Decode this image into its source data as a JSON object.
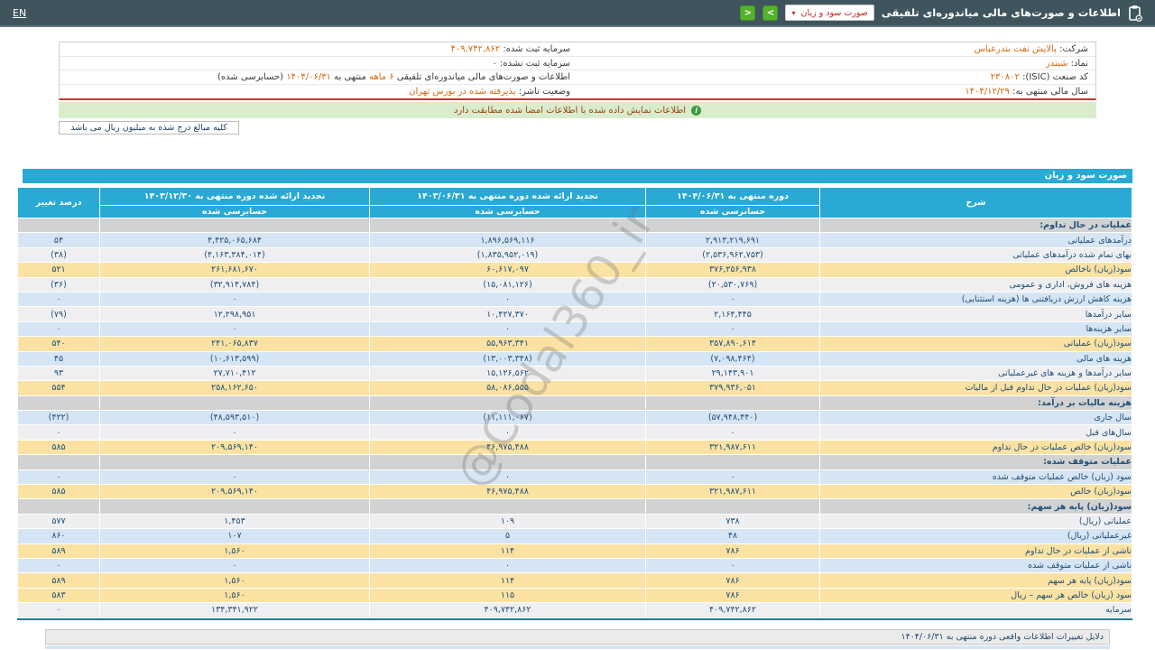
{
  "topbar": {
    "lang_link": "EN",
    "title": "اطلاعات و صورت‌های مالی میاندوره‌ای تلفیقی",
    "report_select": "صورت سود و زیان",
    "select_caret": "▾",
    "next_chevron": ">",
    "prev_chevron": "<"
  },
  "info": {
    "company_label": "شرکت:",
    "company_value": "پالایش نفت بندرعباس",
    "registered_capital_label": "سرمایه ثبت شده:",
    "registered_capital_value": "۴۰۹,۷۴۲,۸۶۲",
    "symbol_label": "نماد:",
    "symbol_value": "شبندر",
    "unregistered_capital_label": "سرمایه ثبت نشده:",
    "unregistered_capital_value": "۰",
    "isic_label": "کد صنعت (ISIC):",
    "isic_value": "۲۳۰۸۰۲",
    "period_note": {
      "prefix": "اطلاعات و صورت‌های مالی میاندوره‌ای تلفیقی",
      "months": "۶ ماهه",
      "middle": "منتهی به",
      "date": "۱۴۰۴/۰۶/۳۱",
      "suffix": "(حسابرسی شده)"
    },
    "fiscal_year_label": "سال مالی منتهی به:",
    "fiscal_year_value": "۱۴۰۴/۱۲/۲۹",
    "issuer_status_label": "وضعیت ناشر:",
    "issuer_status_value": "پذیرفته شده در بورس تهران"
  },
  "banner": {
    "text": "اطلاعات نمایش داده شده با اطلاعات امضا شده مطابقت دارد",
    "icon": "i"
  },
  "unit_note": "کلیه مبالغ درج شده به میلیون ریال می باشد",
  "table": {
    "title": "صورت سود و زیان",
    "columns": {
      "desc": "شرح",
      "col1": "دوره منتهی به ۱۴۰۴/۰۶/۳۱",
      "col2": "تجدید ارائه شده دوره منتهی به ۱۴۰۳/۰۶/۳۱",
      "col3": "تجدید ارائه شده دوره منتهی به ۱۴۰۳/۱۲/۳۰",
      "audited": "حسابرسی شده",
      "pct": "درصد تغییر"
    },
    "rows": [
      {
        "label": "عملیات در حال تداوم:",
        "style": "section",
        "v1": "",
        "v2": "",
        "v3": "",
        "pct": ""
      },
      {
        "label": "درآمدهای عملیاتی",
        "style": "blue",
        "v1": "۲,۹۱۳,۲۱۹,۶۹۱",
        "v2": "۱,۸۹۶,۵۶۹,۱۱۶",
        "v3": "۴,۴۲۵,۰۶۵,۶۸۴",
        "pct": "۵۴"
      },
      {
        "label": "بهای تمام شده درآمدهای عملیاتی",
        "style": "gray",
        "v1": "(۲,۵۳۶,۹۶۲,۷۵۳)",
        "v2": "(۱,۸۳۵,۹۵۲,۰۱۹)",
        "v3": "(۴,۱۶۳,۳۸۴,۰۱۴)",
        "pct": "(۳۸)"
      },
      {
        "label": "سود(زیان) ناخالص",
        "style": "yellow",
        "v1": "۳۷۶,۲۵۶,۹۳۸",
        "v2": "۶۰,۶۱۷,۰۹۷",
        "v3": "۲۶۱,۶۸۱,۶۷۰",
        "pct": "۵۲۱"
      },
      {
        "label": "هزینه های فروش، اداری و عمومی",
        "style": "gray",
        "v1": "(۲۰,۵۳۰,۷۶۹)",
        "v2": "(۱۵,۰۸۱,۱۲۶)",
        "v3": "(۳۲,۹۱۴,۷۸۴)",
        "pct": "(۳۶)"
      },
      {
        "label": "هزینه کاهش ارزش دریافتنی ها (هزینه استثنایی)",
        "style": "blue",
        "v1": "۰",
        "v2": "۰",
        "v3": "۰",
        "pct": "۰"
      },
      {
        "label": "سایر درآمدها",
        "style": "gray",
        "v1": "۲,۱۶۴,۴۴۵",
        "v2": "۱۰,۴۲۷,۳۷۰",
        "v3": "۱۲,۲۹۸,۹۵۱",
        "pct": "(۷۹)"
      },
      {
        "label": "سایر هزینه‌ها",
        "style": "blue",
        "v1": "۰",
        "v2": "۰",
        "v3": "۰",
        "pct": "۰"
      },
      {
        "label": "سود(زیان) عملیاتی",
        "style": "yellow",
        "v1": "۳۵۷,۸۹۰,۶۱۴",
        "v2": "۵۵,۹۶۳,۳۴۱",
        "v3": "۲۴۱,۰۶۵,۸۳۷",
        "pct": "۵۴۰"
      },
      {
        "label": "هزینه های مالی",
        "style": "blue",
        "v1": "(۷,۰۹۸,۴۶۴)",
        "v2": "(۱۳,۰۰۳,۳۴۸)",
        "v3": "(۱۰,۶۱۳,۵۹۹)",
        "pct": "۴۵"
      },
      {
        "label": "سایر درآمدها و هزینه های غیرعملیاتی",
        "style": "gray",
        "v1": "۲۹,۱۴۳,۹۰۱",
        "v2": "۱۵,۱۲۶,۵۶۲",
        "v3": "۲۷,۷۱۰,۴۱۲",
        "pct": "۹۳"
      },
      {
        "label": "سود(زیان) عملیات در حال تداوم قبل از مالیات",
        "style": "yellow",
        "v1": "۳۷۹,۹۳۶,۰۵۱",
        "v2": "۵۸,۰۸۶,۵۵۵",
        "v3": "۲۵۸,۱۶۲,۶۵۰",
        "pct": "۵۵۴"
      },
      {
        "label": "هزینه مالیات بر درآمد:",
        "style": "section",
        "v1": "",
        "v2": "",
        "v3": "",
        "pct": ""
      },
      {
        "label": "سال جاری",
        "style": "blue",
        "v1": "(۵۷,۹۴۸,۴۴۰)",
        "v2": "(۱۱,۱۱۱,۰۶۷)",
        "v3": "(۴۸,۵۹۳,۵۱۰)",
        "pct": "(۴۲۲)"
      },
      {
        "label": "سال‌های قبل",
        "style": "gray",
        "v1": "۰",
        "v2": "۰",
        "v3": "۰",
        "pct": "۰"
      },
      {
        "label": "سود(زیان) خالص عملیات در حال تداوم",
        "style": "yellow",
        "v1": "۳۲۱,۹۸۷,۶۱۱",
        "v2": "۴۶,۹۷۵,۴۸۸",
        "v3": "۲۰۹,۵۶۹,۱۴۰",
        "pct": "۵۸۵"
      },
      {
        "label": "عملیات متوقف شده:",
        "style": "section",
        "v1": "",
        "v2": "",
        "v3": "",
        "pct": ""
      },
      {
        "label": "سود (زیان) خالص عملیات متوقف شده",
        "style": "blue",
        "v1": "۰",
        "v2": "۰",
        "v3": "۰",
        "pct": "۰"
      },
      {
        "label": "سود(زیان) خالص",
        "style": "yellow",
        "v1": "۳۲۱,۹۸۷,۶۱۱",
        "v2": "۴۶,۹۷۵,۴۸۸",
        "v3": "۲۰۹,۵۶۹,۱۴۰",
        "pct": "۵۸۵"
      },
      {
        "label": "سود(زیان) پایه هر سهم:",
        "style": "section",
        "v1": "",
        "v2": "",
        "v3": "",
        "pct": ""
      },
      {
        "label": "عملیاتی (ریال)",
        "style": "gray",
        "v1": "۷۳۸",
        "v2": "۱۰۹",
        "v3": "۱,۴۵۳",
        "pct": "۵۷۷"
      },
      {
        "label": "غیرعملیاتی (ریال)",
        "style": "blue",
        "v1": "۴۸",
        "v2": "۵",
        "v3": "۱۰۷",
        "pct": "۸۶۰"
      },
      {
        "label": "ناشی از عملیات در حال تداوم",
        "style": "yellow",
        "v1": "۷۸۶",
        "v2": "۱۱۴",
        "v3": "۱,۵۶۰",
        "pct": "۵۸۹"
      },
      {
        "label": "ناشی از عملیات متوقف شده",
        "style": "blue",
        "v1": "۰",
        "v2": "۰",
        "v3": "۰",
        "pct": "۰"
      },
      {
        "label": "سود(زیان) پایه هر سهم",
        "style": "yellow",
        "v1": "۷۸۶",
        "v2": "۱۱۴",
        "v3": "۱,۵۶۰",
        "pct": "۵۸۹"
      },
      {
        "label": "سود (زیان) خالص هر سهم – ریال",
        "style": "yellow",
        "v1": "۷۸۶",
        "v2": "۱۱۵",
        "v3": "۱,۵۶۰",
        "pct": "۵۸۳"
      },
      {
        "label": "سرمایه",
        "style": "gray",
        "v1": "۴۰۹,۷۴۲,۸۶۲",
        "v2": "۴۰۹,۷۴۲,۸۶۲",
        "v3": "۱۳۴,۳۴۱,۹۲۲",
        "pct": "۰"
      }
    ]
  },
  "footer": {
    "reasons_title": "دلایل تغییرات اطلاعات واقعی دوره منتهی به ۱۴۰۴/۰۶/۳۱"
  },
  "watermark": "@Codal360_ir"
}
